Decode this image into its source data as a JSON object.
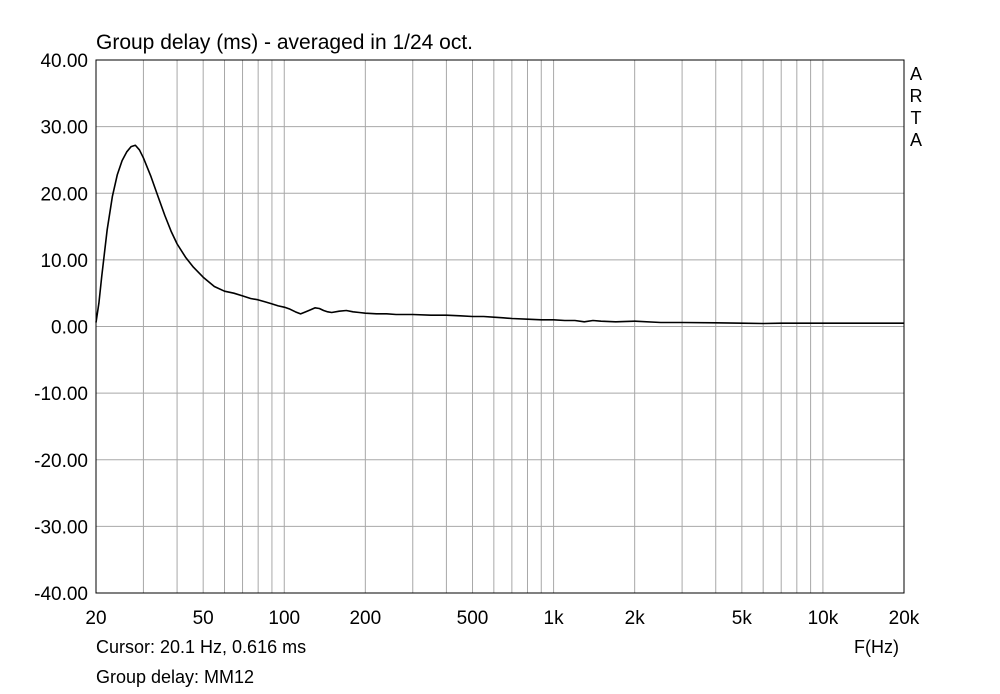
{
  "chart_data": {
    "type": "line",
    "title": "Group delay (ms) - averaged in 1/24 oct.",
    "xlabel": "F(Hz)",
    "ylabel": "",
    "x_scale": "log",
    "xlim": [
      20,
      20000
    ],
    "ylim": [
      -40,
      40
    ],
    "grid": true,
    "x_ticks": [
      {
        "value": 20,
        "label": "20"
      },
      {
        "value": 50,
        "label": "50"
      },
      {
        "value": 100,
        "label": "100"
      },
      {
        "value": 200,
        "label": "200"
      },
      {
        "value": 500,
        "label": "500"
      },
      {
        "value": 1000,
        "label": "1k"
      },
      {
        "value": 2000,
        "label": "2k"
      },
      {
        "value": 5000,
        "label": "5k"
      },
      {
        "value": 10000,
        "label": "10k"
      },
      {
        "value": 20000,
        "label": "20k"
      }
    ],
    "y_ticks": [
      {
        "value": 40,
        "label": "40.00"
      },
      {
        "value": 30,
        "label": "30.00"
      },
      {
        "value": 20,
        "label": "20.00"
      },
      {
        "value": 10,
        "label": "10.00"
      },
      {
        "value": 0,
        "label": "0.00"
      },
      {
        "value": -10,
        "label": "-10.00"
      },
      {
        "value": -20,
        "label": "-20.00"
      },
      {
        "value": -30,
        "label": "-30.00"
      },
      {
        "value": -40,
        "label": "-40.00"
      }
    ],
    "series": [
      {
        "x": [
          20,
          20.5,
          21,
          22,
          23,
          24,
          25,
          26,
          27,
          28,
          29,
          30,
          32,
          34,
          36,
          38,
          40,
          43,
          46,
          50,
          55,
          60,
          65,
          70,
          75,
          80,
          85,
          90,
          95,
          100,
          105,
          110,
          115,
          120,
          125,
          130,
          135,
          140,
          145,
          150,
          160,
          170,
          180,
          190,
          200,
          220,
          240,
          260,
          280,
          300,
          350,
          400,
          450,
          500,
          550,
          600,
          650,
          700,
          800,
          900,
          1000,
          1100,
          1200,
          1300,
          1400,
          1500,
          1700,
          2000,
          2500,
          3000,
          4000,
          5000,
          6000,
          7000,
          8000,
          10000,
          12000,
          15000,
          20000
        ],
        "values": [
          0.6,
          3.5,
          7.5,
          14.5,
          19.5,
          22.8,
          24.9,
          26.2,
          27.0,
          27.2,
          26.5,
          25.3,
          22.5,
          19.5,
          16.7,
          14.3,
          12.4,
          10.4,
          8.9,
          7.4,
          6.0,
          5.3,
          5.0,
          4.6,
          4.2,
          4.0,
          3.7,
          3.4,
          3.1,
          2.9,
          2.6,
          2.2,
          1.9,
          2.2,
          2.5,
          2.8,
          2.7,
          2.4,
          2.2,
          2.1,
          2.3,
          2.4,
          2.2,
          2.1,
          2.0,
          1.9,
          1.9,
          1.8,
          1.8,
          1.8,
          1.7,
          1.7,
          1.6,
          1.5,
          1.5,
          1.4,
          1.3,
          1.2,
          1.1,
          1.0,
          1.0,
          0.9,
          0.9,
          0.7,
          0.9,
          0.8,
          0.7,
          0.8,
          0.6,
          0.6,
          0.55,
          0.5,
          0.45,
          0.5,
          0.5,
          0.5,
          0.5,
          0.5,
          0.5
        ]
      }
    ]
  },
  "brand": [
    "A",
    "R",
    "T",
    "A"
  ],
  "info": {
    "cursor": "Cursor: 20.1 Hz, 0.616 ms",
    "series_label": "Group delay: MM12"
  }
}
